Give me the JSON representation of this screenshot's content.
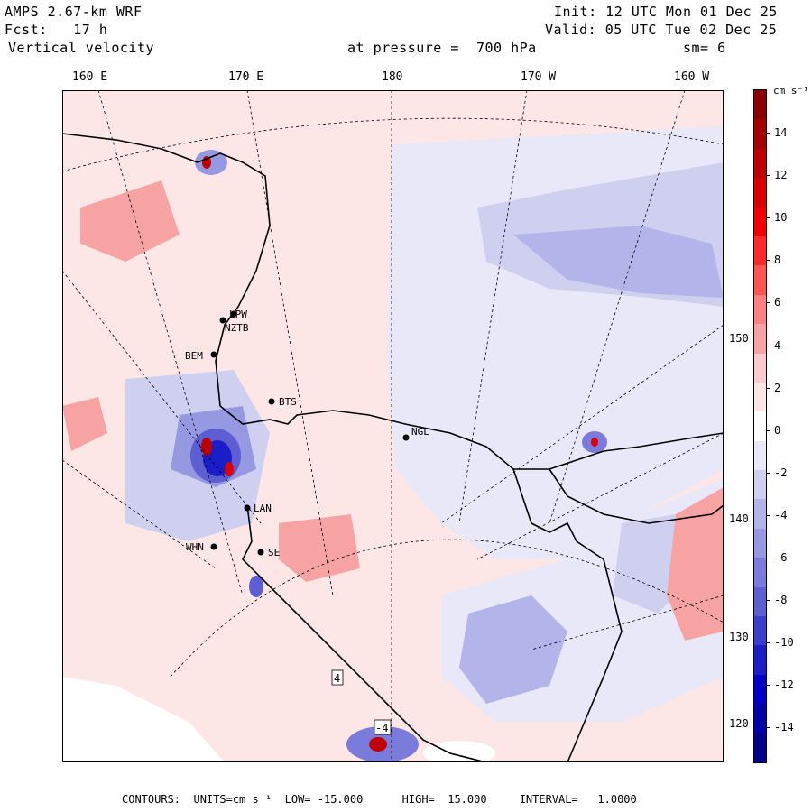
{
  "header": {
    "model": "AMPS 2.67-km WRF",
    "forecast": "Fcst:   17 h",
    "field": "Vertical velocity",
    "init": "Init: 12 UTC Mon 01 Dec 25",
    "valid": "Valid: 05 UTC Tue 02 Dec 25",
    "level": "at pressure =  700 hPa",
    "smoothing": "sm= 6"
  },
  "longitude_labels": [
    "160 E",
    "170 E",
    "180",
    "170 W",
    "160 W"
  ],
  "latitude_labels": [
    "150 W",
    "140 W",
    "130 W",
    "120 W"
  ],
  "stations": [
    "LPW",
    "NZTB",
    "BEM",
    "BTS",
    "NGL",
    "LAN",
    "WHN",
    "SE"
  ],
  "contour_labels": [
    "4",
    "-4"
  ],
  "colorbar": {
    "units": "cm s⁻¹",
    "labels": [
      "14",
      "12",
      "10",
      "8",
      "6",
      "4",
      "2",
      "0",
      "-2",
      "-4",
      "-6",
      "-8",
      "-10",
      "-12",
      "-14"
    ],
    "colors": [
      "#8b0000",
      "#a40000",
      "#bf0000",
      "#d80000",
      "#f20000",
      "#ff2a2a",
      "#ff5555",
      "#ff8080",
      "#f7a3a3",
      "#fbcaca",
      "#fde6e6",
      "#ffffff",
      "#e8e8f8",
      "#cfd0f0",
      "#b3b5ea",
      "#9698e2",
      "#7a7bda",
      "#5c5ed2",
      "#3b3dcc",
      "#1b1dc6",
      "#0000c8",
      "#0000a8",
      "#00008b"
    ]
  },
  "footer": {
    "contours": "CONTOURS:  UNITS=cm s⁻¹  LOW= -15.000      HIGH=  15.000     INTERVAL=   1.0000"
  }
}
